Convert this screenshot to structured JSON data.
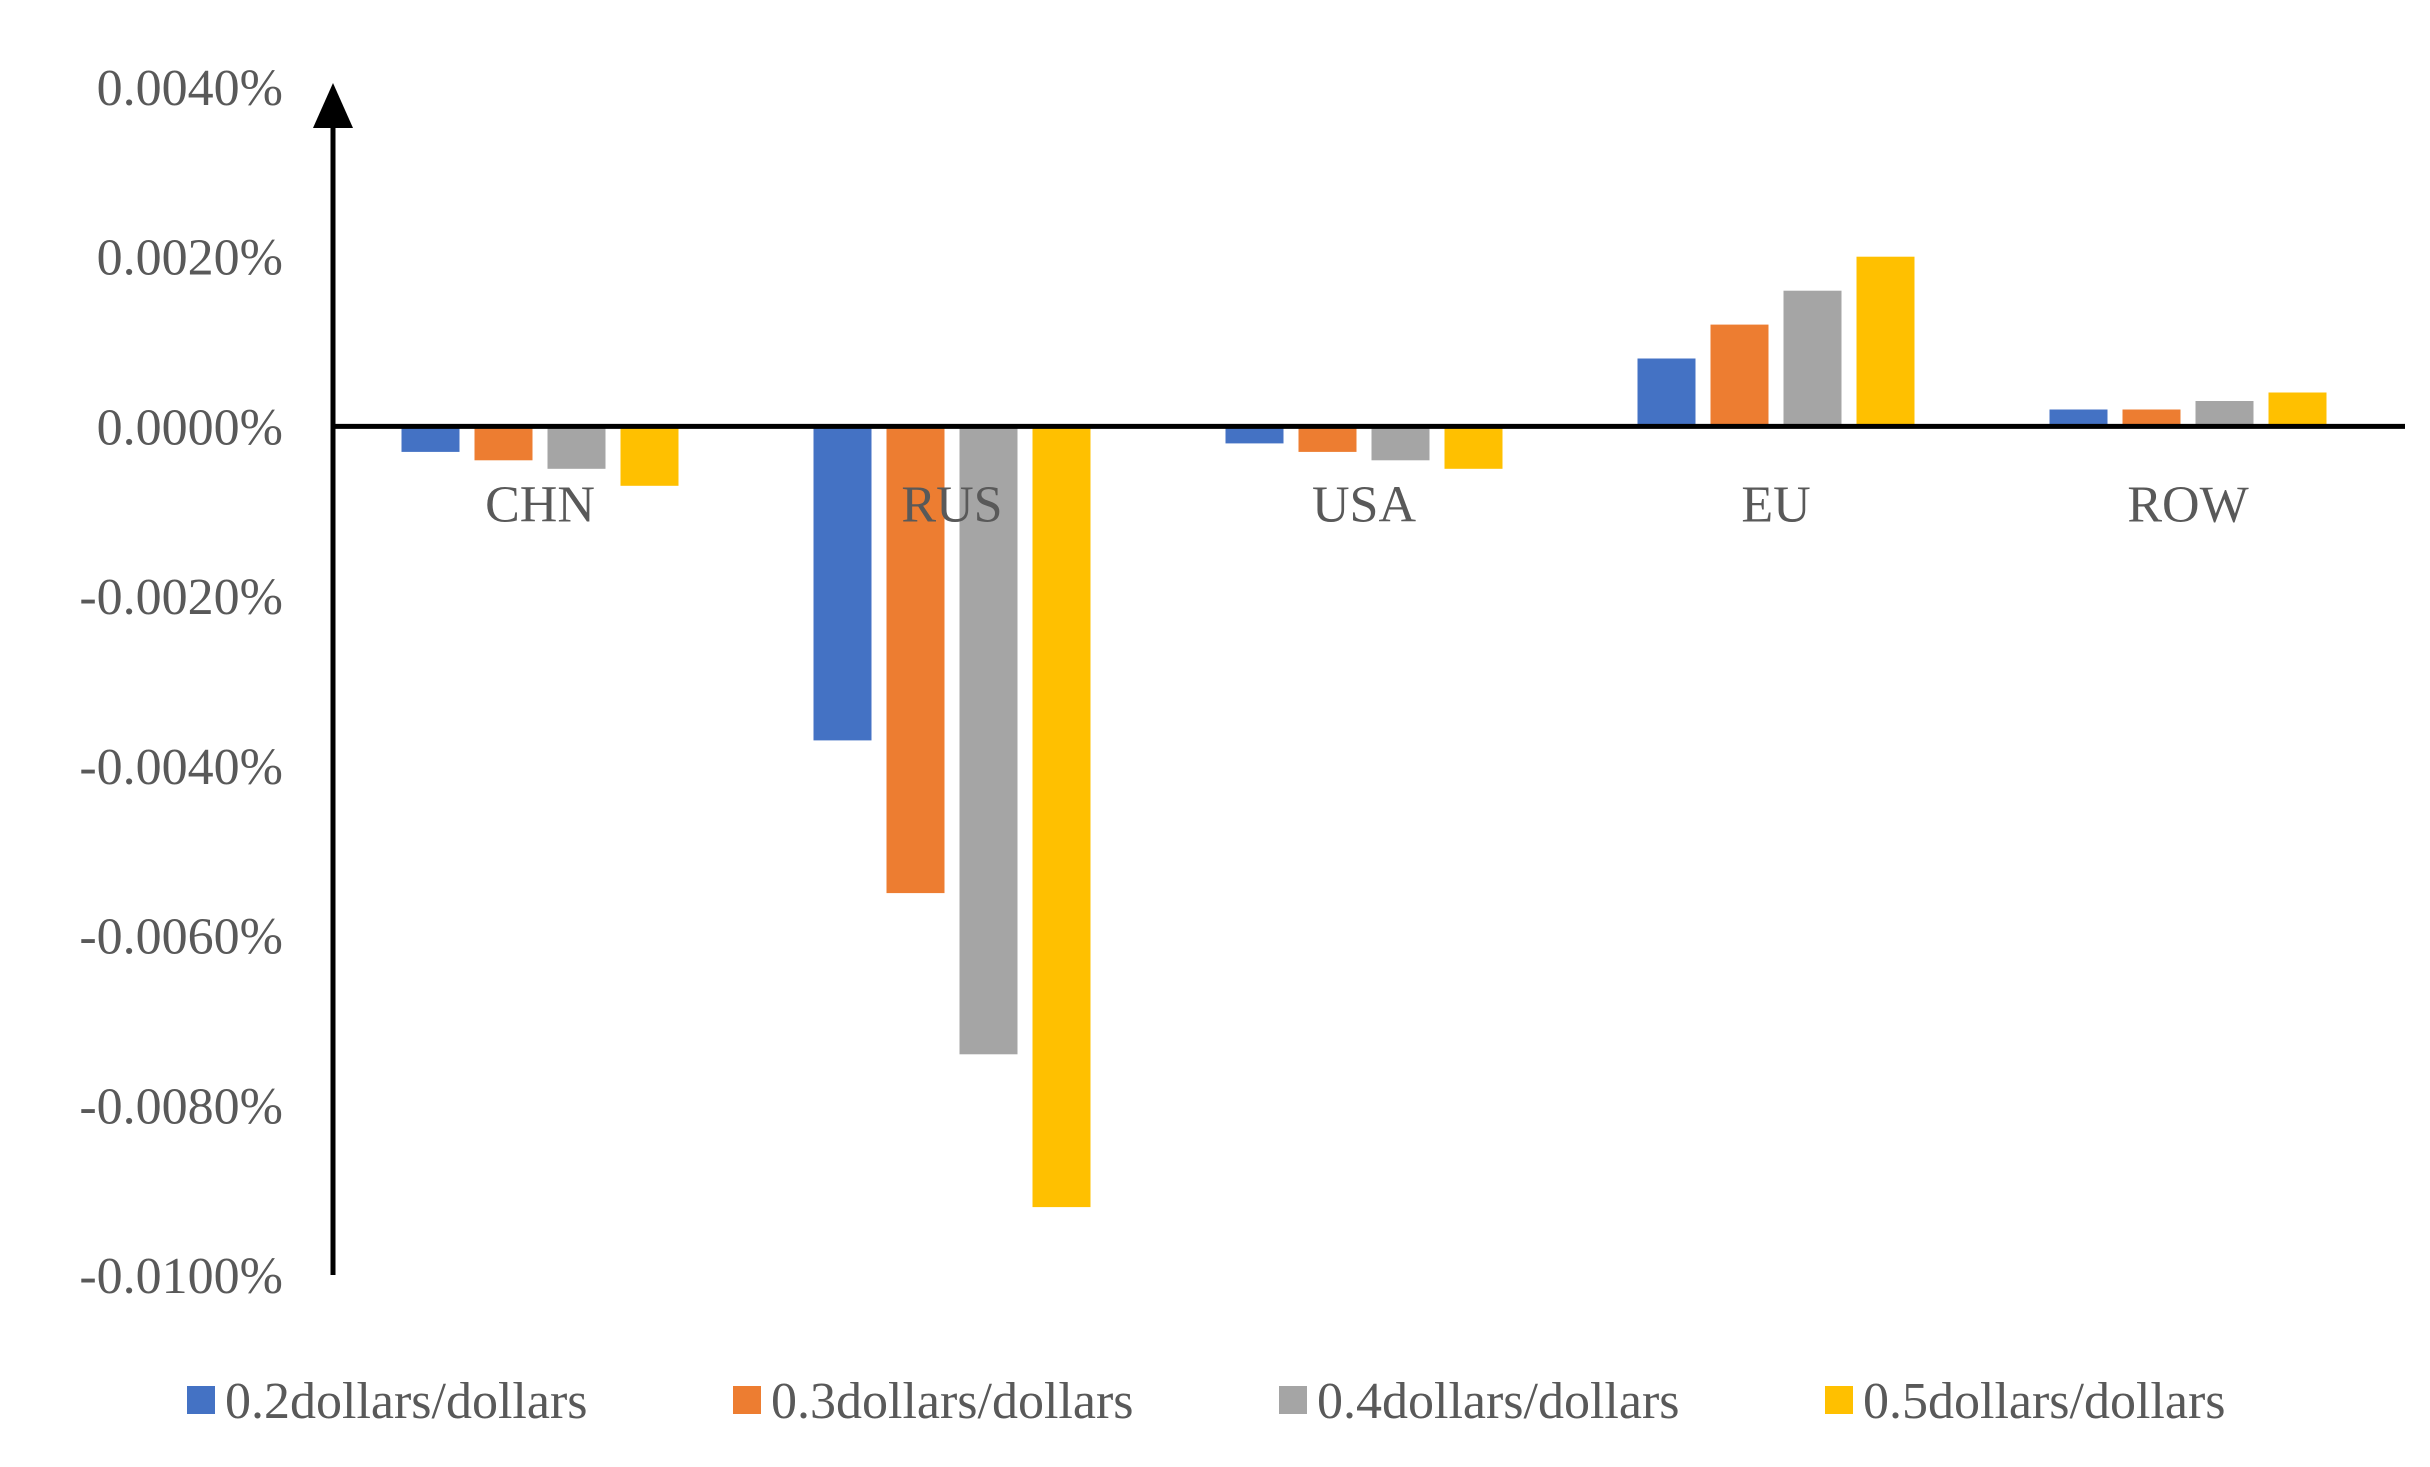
{
  "chart_data": {
    "type": "bar",
    "title": "",
    "xlabel": "",
    "ylabel": "",
    "ylim": [
      -0.01,
      0.004
    ],
    "y_ticks": [
      0.004,
      0.002,
      0.0,
      -0.002,
      -0.004,
      -0.006,
      -0.008,
      -0.01
    ],
    "y_tick_labels": [
      "0.0040%",
      "0.0020%",
      "0.0000%",
      "-0.0020%",
      "-0.0040%",
      "-0.0060%",
      "-0.0080%",
      "-0.0100%"
    ],
    "grid": false,
    "legend_position": "bottom",
    "categories": [
      "CHN",
      "RUS",
      "USA",
      "EU",
      "ROW"
    ],
    "series": [
      {
        "name": "0.2dollars/dollars",
        "color": "#4472C4",
        "values": [
          -0.0003,
          -0.0037,
          -0.0002,
          0.0008,
          0.0002
        ]
      },
      {
        "name": "0.3dollars/dollars",
        "color": "#ED7D31",
        "values": [
          -0.0004,
          -0.0055,
          -0.0003,
          0.0012,
          0.0002
        ]
      },
      {
        "name": "0.4dollars/dollars",
        "color": "#A5A5A5",
        "values": [
          -0.0005,
          -0.0074,
          -0.0004,
          0.0016,
          0.0003
        ]
      },
      {
        "name": "0.5dollars/dollars",
        "color": "#FFC000",
        "values": [
          -0.0007,
          -0.0092,
          -0.0005,
          0.002,
          0.0004
        ]
      }
    ]
  }
}
